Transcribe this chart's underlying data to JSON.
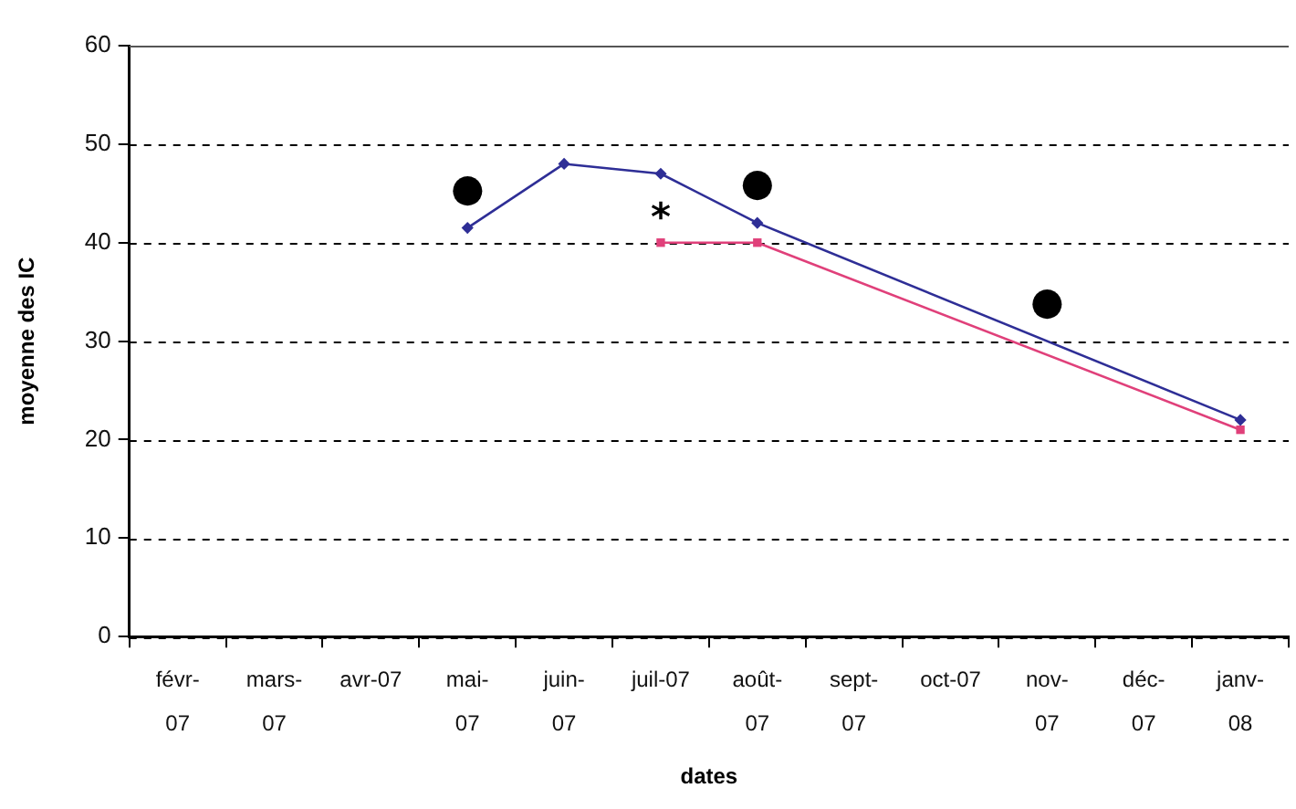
{
  "chart_data": {
    "type": "line",
    "xlabel": "dates",
    "ylabel": "moyenne des IC",
    "categories": [
      "févr-07",
      "mars-07",
      "avr-07",
      "mai-07",
      "juin-07",
      "juil-07",
      "août-07",
      "sept-07",
      "oct-07",
      "nov-07",
      "déc-07",
      "janv-08"
    ],
    "series": [
      {
        "color": "#2e2e96",
        "marker": "diamond",
        "values": [
          null,
          null,
          null,
          41.5,
          48,
          47,
          42,
          null,
          null,
          null,
          null,
          22
        ]
      },
      {
        "color": "#e0407a",
        "marker": "square",
        "values": [
          null,
          null,
          null,
          null,
          null,
          40,
          40,
          null,
          null,
          null,
          null,
          21
        ]
      }
    ],
    "ylim": [
      0,
      60
    ],
    "yticks": [
      0,
      10,
      20,
      30,
      40,
      50,
      60
    ],
    "grid": "y",
    "line_style": "solid",
    "annotations": [
      {
        "text": "●",
        "x": "mai-07",
        "y": 41.5
      },
      {
        "text": "*",
        "x": "juil-07",
        "y": 40
      },
      {
        "text": "●",
        "x": "août-07",
        "y": 42
      },
      {
        "text": "●",
        "x": "nov-07",
        "y": 30
      }
    ]
  }
}
